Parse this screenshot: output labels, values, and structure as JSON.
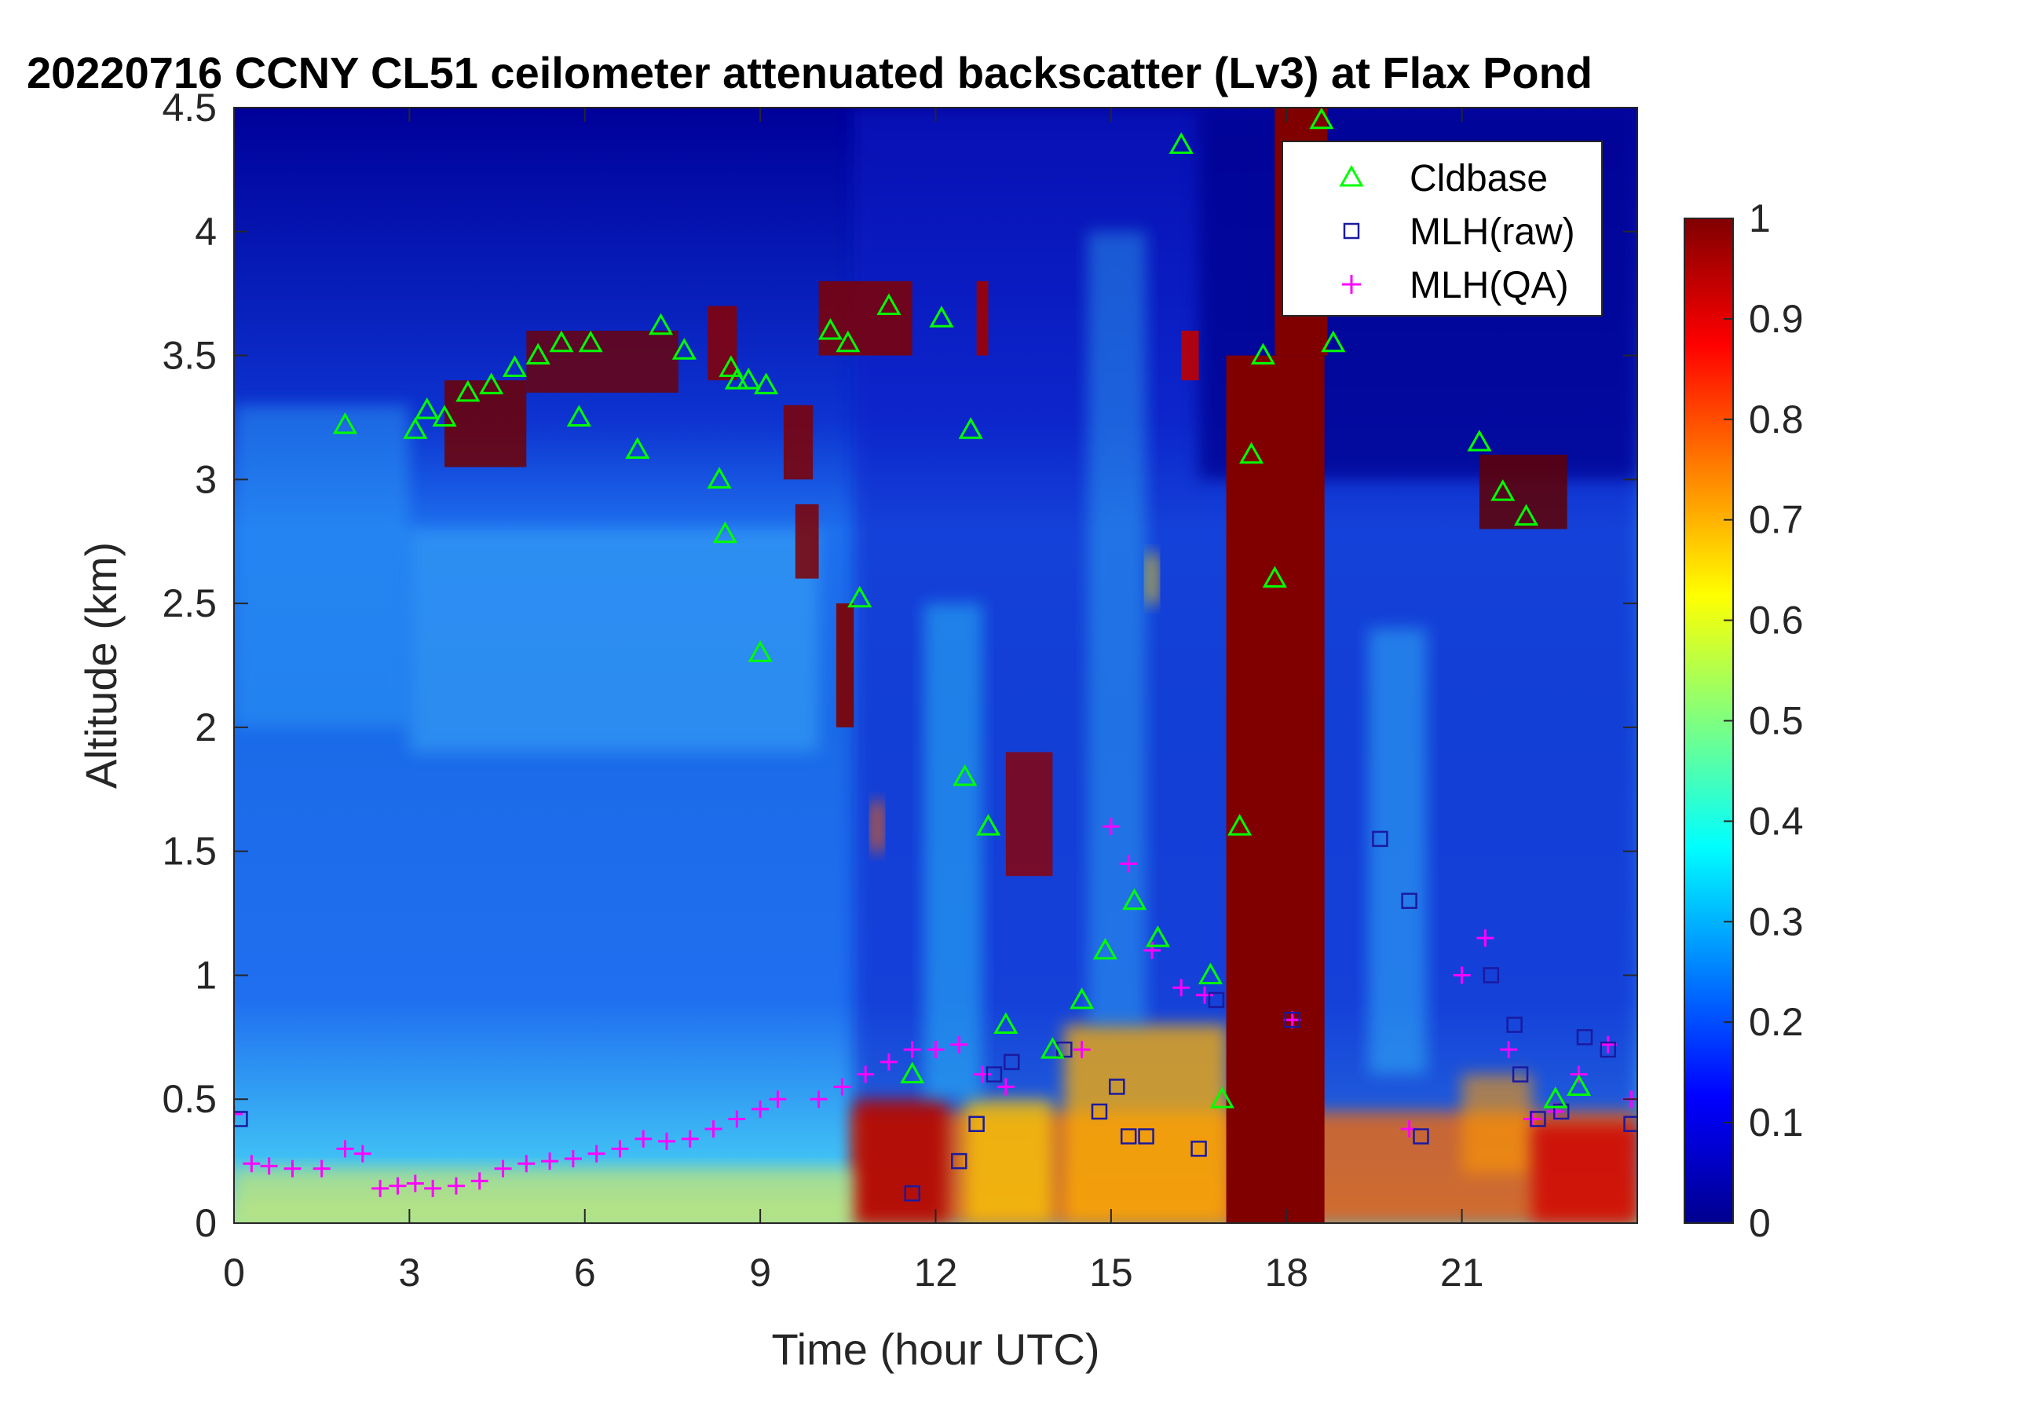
{
  "chart_data": {
    "type": "heatmap",
    "title": "20220716 CCNY CL51 ceilometer attenuated backscatter (Lv3) at Flax Pond",
    "xlabel": "Time (hour UTC)",
    "ylabel": "Altitude (km)",
    "xlim": [
      0,
      24
    ],
    "ylim": [
      0,
      4.5
    ],
    "xticks": [
      0,
      3,
      6,
      9,
      12,
      15,
      18,
      21
    ],
    "xtick_labels": [
      "0",
      "3",
      "6",
      "9",
      "12",
      "15",
      "18",
      "21"
    ],
    "yticks": [
      0,
      0.5,
      1,
      1.5,
      2,
      2.5,
      3,
      3.5,
      4,
      4.5
    ],
    "ytick_labels": [
      "0",
      "0.5",
      "1",
      "1.5",
      "2",
      "2.5",
      "3",
      "3.5",
      "4",
      "4.5"
    ],
    "colorbar": {
      "colormap": "jet",
      "clim": [
        0,
        1
      ],
      "ticks": [
        0,
        0.1,
        0.2,
        0.3,
        0.4,
        0.5,
        0.6,
        0.7,
        0.8,
        0.9,
        1
      ],
      "tick_labels": [
        "0",
        "0.1",
        "0.2",
        "0.3",
        "0.4",
        "0.5",
        "0.6",
        "0.7",
        "0.8",
        "0.9",
        "1"
      ]
    },
    "legend": {
      "placement": "top-right",
      "entries": [
        {
          "name": "Cldbase",
          "marker": "triangle",
          "color": "#00ff00"
        },
        {
          "name": "MLH(raw)",
          "marker": "square",
          "color": "#1a1aa0"
        },
        {
          "name": "MLH(QA)",
          "marker": "plus",
          "color": "#ff00ff"
        }
      ]
    },
    "series": [
      {
        "name": "Cldbase",
        "x": [
          1.9,
          3.1,
          3.3,
          3.6,
          4.0,
          4.4,
          4.8,
          5.2,
          5.6,
          5.9,
          6.1,
          6.9,
          7.3,
          7.7,
          8.3,
          8.4,
          8.5,
          8.6,
          8.8,
          9.0,
          9.1,
          10.2,
          10.5,
          10.7,
          11.2,
          11.6,
          12.1,
          12.5,
          12.6,
          12.9,
          13.2,
          14.0,
          14.5,
          14.9,
          15.4,
          15.8,
          16.2,
          16.7,
          16.9,
          17.2,
          17.4,
          17.6,
          17.8,
          18.6,
          18.8,
          21.3,
          21.7,
          22.1,
          22.6,
          23.0
        ],
        "y": [
          3.22,
          3.2,
          3.28,
          3.25,
          3.35,
          3.38,
          3.45,
          3.5,
          3.55,
          3.25,
          3.55,
          3.12,
          3.62,
          3.52,
          3.0,
          2.78,
          3.45,
          3.4,
          3.4,
          2.3,
          3.38,
          3.6,
          3.55,
          2.52,
          3.7,
          0.6,
          3.65,
          1.8,
          3.2,
          1.6,
          0.8,
          0.7,
          0.9,
          1.1,
          1.3,
          1.15,
          4.35,
          1.0,
          0.5,
          1.6,
          3.1,
          3.5,
          2.6,
          4.45,
          3.55,
          3.15,
          2.95,
          2.85,
          0.5,
          0.55
        ]
      },
      {
        "name": "MLH(raw)",
        "x": [
          0.1,
          11.6,
          12.4,
          12.7,
          13.0,
          13.3,
          14.2,
          14.8,
          15.1,
          15.3,
          15.6,
          16.5,
          16.8,
          18.1,
          19.6,
          20.1,
          20.3,
          21.5,
          21.9,
          22.0,
          22.3,
          22.7,
          23.1,
          23.5,
          23.9
        ],
        "y": [
          0.42,
          0.12,
          0.25,
          0.4,
          0.6,
          0.65,
          0.7,
          0.45,
          0.55,
          0.35,
          0.35,
          0.3,
          0.9,
          0.82,
          1.55,
          1.3,
          0.35,
          1.0,
          0.8,
          0.6,
          0.42,
          0.45,
          0.75,
          0.7,
          0.4
        ]
      },
      {
        "name": "MLH(QA)",
        "x": [
          0.0,
          0.3,
          0.6,
          1.0,
          1.5,
          1.9,
          2.2,
          2.5,
          2.8,
          3.1,
          3.4,
          3.8,
          4.2,
          4.6,
          5.0,
          5.4,
          5.8,
          6.2,
          6.6,
          7.0,
          7.4,
          7.8,
          8.2,
          8.6,
          9.0,
          9.3,
          10.0,
          10.4,
          10.8,
          11.2,
          11.6,
          12.0,
          12.4,
          12.8,
          13.2,
          14.5,
          15.0,
          15.3,
          15.7,
          16.2,
          16.6,
          18.1,
          20.1,
          21.0,
          21.4,
          21.8,
          22.2,
          22.6,
          23.0,
          23.5,
          23.9
        ],
        "y": [
          0.44,
          0.24,
          0.23,
          0.22,
          0.22,
          0.3,
          0.28,
          0.14,
          0.15,
          0.16,
          0.14,
          0.15,
          0.17,
          0.22,
          0.24,
          0.25,
          0.26,
          0.28,
          0.3,
          0.34,
          0.33,
          0.34,
          0.38,
          0.42,
          0.46,
          0.5,
          0.5,
          0.55,
          0.6,
          0.65,
          0.7,
          0.7,
          0.72,
          0.6,
          0.55,
          0.7,
          1.6,
          1.45,
          1.1,
          0.95,
          0.92,
          0.82,
          0.38,
          1.0,
          1.15,
          0.7,
          0.42,
          0.45,
          0.6,
          0.72,
          0.5
        ]
      }
    ]
  }
}
